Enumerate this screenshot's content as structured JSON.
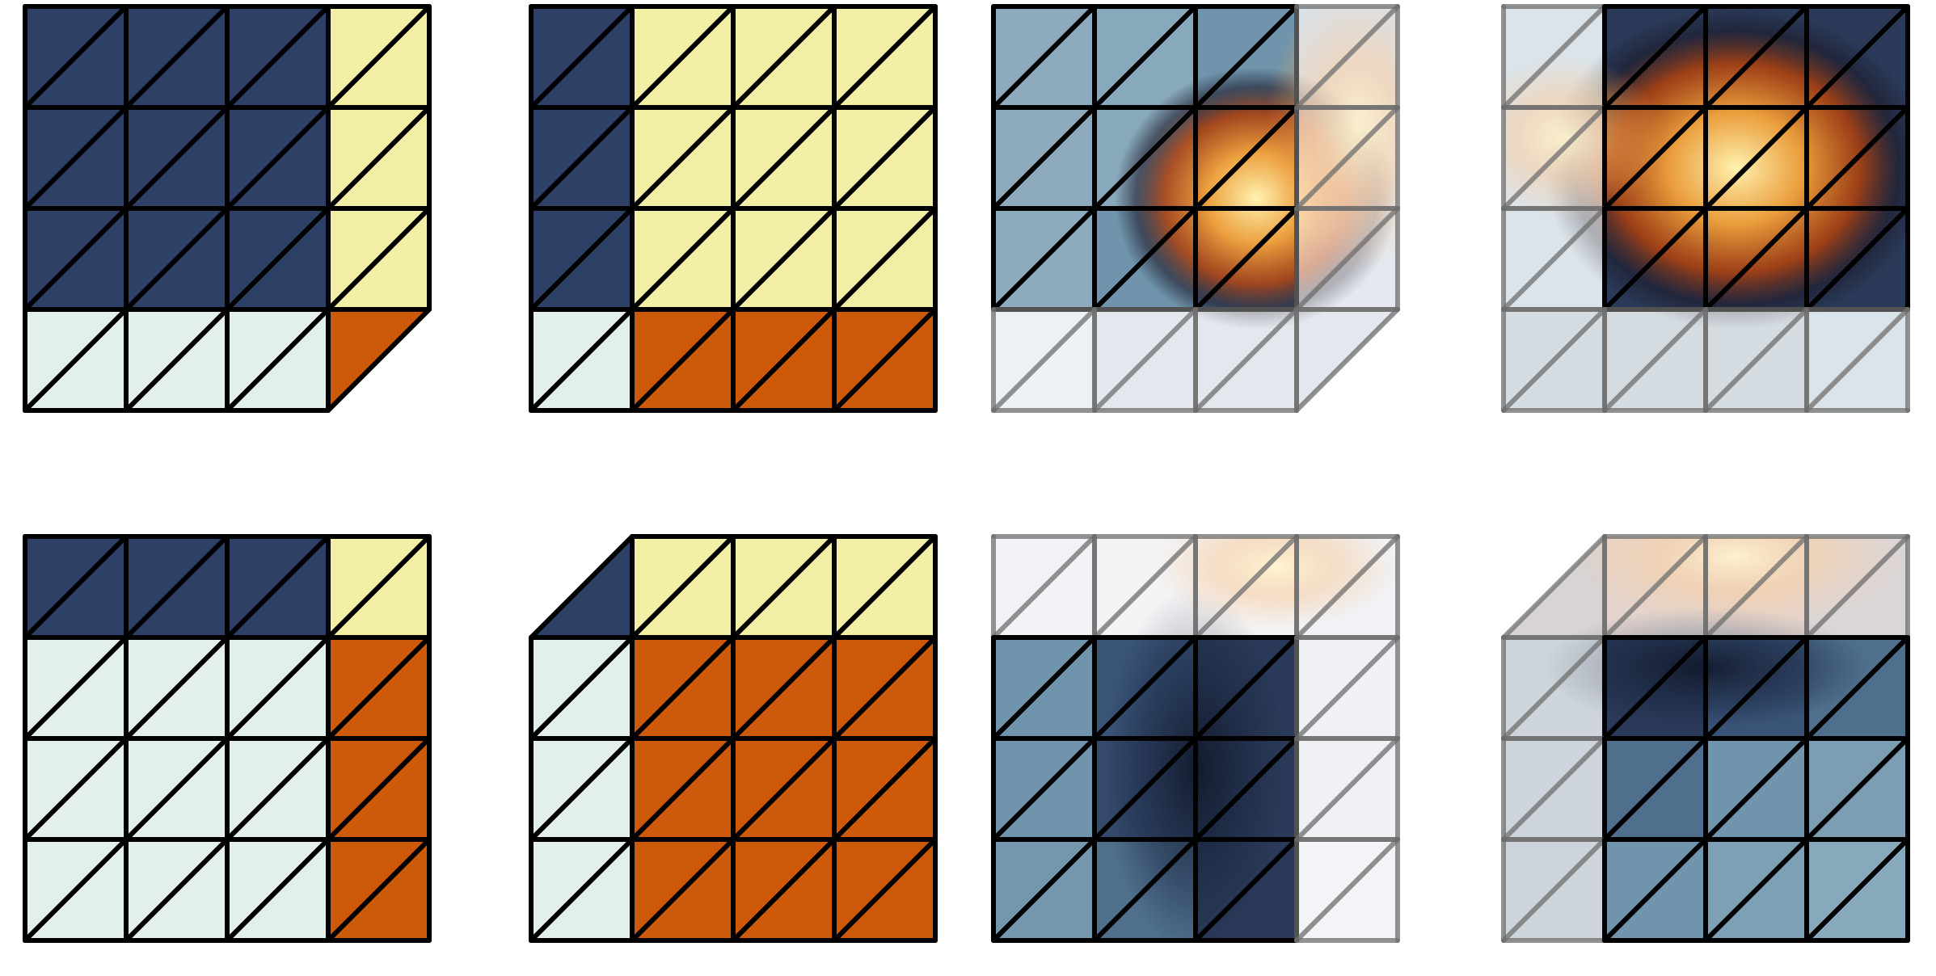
{
  "panels": [
    {
      "colors": [
        [
          "#2e4066",
          "#2e4066",
          "#2e4066",
          "#f2eea5"
        ],
        [
          "#2e4066",
          "#2e4066",
          "#2e4066",
          "#f2eea5"
        ],
        [
          "#2e4066",
          "#2e4066",
          "#2e4066",
          "#f2eea5"
        ],
        [
          "#e3efec",
          "#e3efec",
          "#e3efec",
          "#cc5a0a"
        ]
      ]
    },
    {
      "colors": [
        [
          "#2e4066",
          "#f2eea5",
          "#f2eea5",
          "#f2eea5"
        ],
        [
          "#2e4066",
          "#f2eea5",
          "#f2eea5",
          "#f2eea5"
        ],
        [
          "#2e4066",
          "#f2eea5",
          "#f2eea5",
          "#f2eea5"
        ],
        [
          "#e3efec",
          "#cc5a0a",
          "#cc5a0a",
          "#cc5a0a"
        ]
      ]
    },
    {
      "colors": [
        [
          "#8eabbd",
          "#88a8bb",
          "#6f94ab",
          "#b4c2d2"
        ],
        [
          "#8eabbd",
          "#88a8bb",
          "#4f6f8c",
          "#c8d0dc"
        ],
        [
          "#8eabbd",
          "#6f94ab",
          "#4f6f8c",
          "#c8d0dc"
        ],
        [
          "#d6e2ea",
          "#c8d0dc",
          "#c8d0dc",
          "#c8d0dc"
        ]
      ]
    },
    {
      "colors": [
        [
          "#b7c8d4",
          "#2a3a58",
          "#2a3a58",
          "#2a3a58"
        ],
        [
          "#b7c8d4",
          "#2a3a58",
          "#2a3a58",
          "#2a3a58"
        ],
        [
          "#b7c8d4",
          "#2a3a58",
          "#2a3a58",
          "#2a3a58"
        ],
        [
          "#a9b8c4",
          "#a9b8c4",
          "#a9b8c4",
          "#b7c8d4"
        ]
      ]
    },
    {
      "colors": [
        [
          "#2e4066",
          "#2e4066",
          "#2e4066",
          "#f2eea5"
        ],
        [
          "#e3efec",
          "#e3efec",
          "#e3efec",
          "#cc5a0a"
        ],
        [
          "#e3efec",
          "#e3efec",
          "#e3efec",
          "#cc5a0a"
        ],
        [
          "#e3efec",
          "#e3efec",
          "#e3efec",
          "#cc5a0a"
        ]
      ]
    },
    {
      "colors": [
        [
          "#2e4066",
          "#f2eea5",
          "#f2eea5",
          "#f2eea5"
        ],
        [
          "#e3efec",
          "#cc5a0a",
          "#cc5a0a",
          "#cc5a0a"
        ],
        [
          "#e3efec",
          "#cc5a0a",
          "#cc5a0a",
          "#cc5a0a"
        ],
        [
          "#e3efec",
          "#cc5a0a",
          "#cc5a0a",
          "#cc5a0a"
        ]
      ]
    },
    {
      "colors": [
        [
          "#e2e6ec",
          "#e6e6ea",
          "#e8e4e4",
          "#e2e4ea"
        ],
        [
          "#6f94ab",
          "#3a5478",
          "#2a3a58",
          "#dfe3ea"
        ],
        [
          "#6f94ab",
          "#34496c",
          "#2a3a58",
          "#dfe3ea"
        ],
        [
          "#7497ad",
          "#4f6f8c",
          "#2a3a58",
          "#e4e8ee"
        ]
      ]
    },
    {
      "colors": [
        [
          "#b0a6a8",
          "#c8a89a",
          "#caa696",
          "#b8aaaa"
        ],
        [
          "#9aa9b6",
          "#2a3a58",
          "#3a5478",
          "#4f6f8c"
        ],
        [
          "#9aa9b6",
          "#4f6f8c",
          "#6f94ab",
          "#7c9db2"
        ],
        [
          "#9aa9b6",
          "#6f94ab",
          "#7ea0b4",
          "#88a8bb"
        ]
      ]
    }
  ]
}
